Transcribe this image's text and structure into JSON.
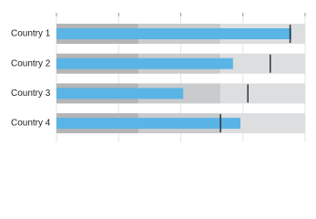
{
  "chart_data": {
    "type": "bullet",
    "categories": [
      "Country 1",
      "Country 2",
      "Country 3",
      "Country 4"
    ],
    "values": [
      94.5,
      71,
      51,
      74
    ],
    "targets": [
      94,
      86,
      77,
      66
    ],
    "ranges": [
      33,
      66,
      100
    ],
    "range_colors": [
      "#b3b5b7",
      "#c9cbcd",
      "#dcdedf"
    ],
    "color": "#5ab4e5",
    "target_color": "#333333",
    "xlim": [
      0,
      100
    ],
    "xticks": [
      0,
      25,
      50,
      75,
      100
    ],
    "grid": true
  }
}
